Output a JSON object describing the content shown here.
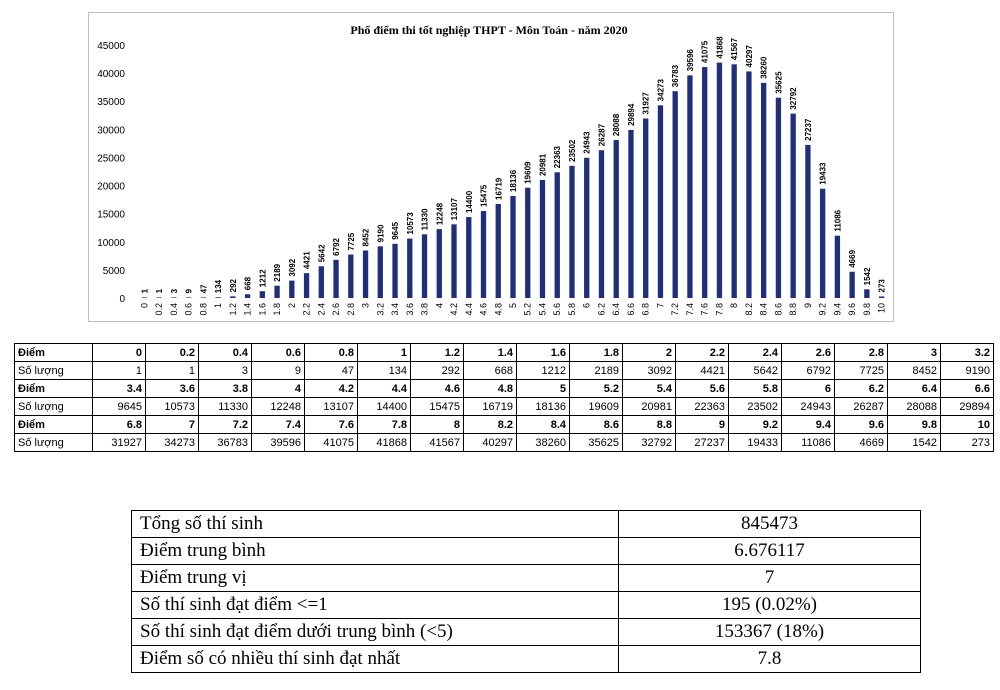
{
  "chart_data": {
    "type": "bar",
    "title": "Phổ điểm thi tốt nghiệp THPT - Môn Toán - năm 2020",
    "xlabel": "",
    "ylabel": "",
    "ylim": [
      0,
      45000
    ],
    "yticks": [
      0,
      5000,
      10000,
      15000,
      20000,
      25000,
      30000,
      35000,
      40000,
      45000
    ],
    "bar_color": "#1f2f7a",
    "categories": [
      "0",
      "0.2",
      "0.4",
      "0.6",
      "0.8",
      "1",
      "1.2",
      "1.4",
      "1.6",
      "1.8",
      "2",
      "2.2",
      "2.4",
      "2.6",
      "2.8",
      "3",
      "3.2",
      "3.4",
      "3.6",
      "3.8",
      "4",
      "4.2",
      "4.4",
      "4.6",
      "4.8",
      "5",
      "5.2",
      "5.4",
      "5.6",
      "5.8",
      "6",
      "6.2",
      "6.4",
      "6.6",
      "6.8",
      "7",
      "7.2",
      "7.4",
      "7.6",
      "7.8",
      "8",
      "8.2",
      "8.4",
      "8.6",
      "8.8",
      "9",
      "9.2",
      "9.4",
      "9.6",
      "9.8",
      "10"
    ],
    "values": [
      1,
      1,
      3,
      9,
      47,
      134,
      292,
      668,
      1212,
      2189,
      3092,
      4421,
      5642,
      6792,
      7725,
      8452,
      9190,
      9645,
      10573,
      11330,
      12248,
      13107,
      14400,
      15475,
      16719,
      18136,
      19609,
      20981,
      22363,
      23502,
      24943,
      26287,
      28088,
      29894,
      31927,
      34273,
      36783,
      39596,
      41075,
      41868,
      41567,
      40297,
      38260,
      35625,
      32792,
      27237,
      19433,
      11086,
      4669,
      1542,
      273
    ]
  },
  "distribution_table": {
    "score_label": "Điểm",
    "count_label": "Số lượng",
    "rows": [
      {
        "scores": [
          "0",
          "0.2",
          "0.4",
          "0.6",
          "0.8",
          "1",
          "1.2",
          "1.4",
          "1.6",
          "1.8",
          "2",
          "2.2",
          "2.4",
          "2.6",
          "2.8",
          "3",
          "3.2"
        ],
        "counts": [
          "1",
          "1",
          "3",
          "9",
          "47",
          "134",
          "292",
          "668",
          "1212",
          "2189",
          "3092",
          "4421",
          "5642",
          "6792",
          "7725",
          "8452",
          "9190"
        ]
      },
      {
        "scores": [
          "3.4",
          "3.6",
          "3.8",
          "4",
          "4.2",
          "4.4",
          "4.6",
          "4.8",
          "5",
          "5.2",
          "5.4",
          "5.6",
          "5.8",
          "6",
          "6.2",
          "6.4",
          "6.6"
        ],
        "counts": [
          "9645",
          "10573",
          "11330",
          "12248",
          "13107",
          "14400",
          "15475",
          "16719",
          "18136",
          "19609",
          "20981",
          "22363",
          "23502",
          "24943",
          "26287",
          "28088",
          "29894"
        ]
      },
      {
        "scores": [
          "6.8",
          "7",
          "7.2",
          "7.4",
          "7.6",
          "7.8",
          "8",
          "8.2",
          "8.4",
          "8.6",
          "8.8",
          "9",
          "9.2",
          "9.4",
          "9.6",
          "9.8",
          "10"
        ],
        "counts": [
          "31927",
          "34273",
          "36783",
          "39596",
          "41075",
          "41868",
          "41567",
          "40297",
          "38260",
          "35625",
          "32792",
          "27237",
          "19433",
          "11086",
          "4669",
          "1542",
          "273"
        ]
      }
    ]
  },
  "summary": [
    {
      "label": "Tổng số thí sinh",
      "value": "845473"
    },
    {
      "label": "Điểm trung bình",
      "value": "6.676117"
    },
    {
      "label": "Điểm trung vị",
      "value": "7"
    },
    {
      "label": "Số thí sinh đạt điểm <=1",
      "value": "195 (0.02%)"
    },
    {
      "label": "Số thí sinh đạt điểm dưới trung bình (<5)",
      "value": "153367 (18%)"
    },
    {
      "label": "Điểm số có nhiều thí sinh đạt nhất",
      "value": "7.8"
    }
  ]
}
